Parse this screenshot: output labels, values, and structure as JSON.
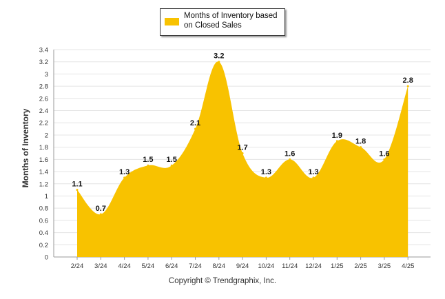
{
  "chart_data": {
    "type": "area",
    "categories": [
      "2/24",
      "3/24",
      "4/24",
      "5/24",
      "6/24",
      "7/24",
      "8/24",
      "9/24",
      "10/24",
      "11/24",
      "12/24",
      "1/25",
      "2/25",
      "3/25",
      "4/25"
    ],
    "series": [
      {
        "name": "Months of Inventory based on Closed Sales",
        "values": [
          1.1,
          0.7,
          1.3,
          1.5,
          1.5,
          2.1,
          3.2,
          1.7,
          1.3,
          1.6,
          1.3,
          1.9,
          1.8,
          1.6,
          2.8
        ],
        "color": "#f8c200"
      }
    ],
    "title": "",
    "xlabel": "",
    "ylabel": "Months of Inventory",
    "ylim": [
      0,
      3.4
    ],
    "yticks": [
      "0",
      "0.2",
      "0.4",
      "0.6",
      "0.8",
      "1",
      "1.2",
      "1.4",
      "1.6",
      "1.8",
      "2",
      "2.2",
      "2.4",
      "2.6",
      "2.8",
      "3",
      "3.2",
      "3.4"
    ],
    "grid": true,
    "legend_position": "top-center",
    "data_labels": [
      "1.1",
      "0.7",
      "1.3",
      "1.5",
      "1.5",
      "2.1",
      "3.2",
      "1.7",
      "1.3",
      "1.6",
      "1.3",
      "1.9",
      "1.8",
      "1.6",
      "2.8"
    ]
  },
  "footer": {
    "copyright": "Copyright © Trendgraphix, Inc."
  }
}
